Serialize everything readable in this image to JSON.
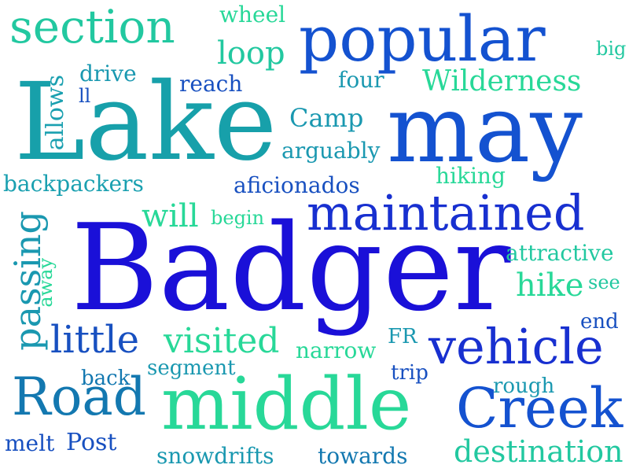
{
  "words": [
    {
      "text": "Badger",
      "color": "#1a10d8"
    },
    {
      "text": "Lake",
      "color": "#17a0aa"
    },
    {
      "text": "may",
      "color": "#1452d0"
    },
    {
      "text": "popular",
      "color": "#1452d0"
    },
    {
      "text": "middle",
      "color": "#28d898"
    },
    {
      "text": "maintained",
      "color": "#1830d0"
    },
    {
      "text": "Creek",
      "color": "#1452d0"
    },
    {
      "text": "vehicle",
      "color": "#1830d0"
    },
    {
      "text": "Road",
      "color": "#1378b0"
    },
    {
      "text": "section",
      "color": "#22c8a0"
    },
    {
      "text": "visited",
      "color": "#28d898"
    },
    {
      "text": "passing",
      "color": "#1a98b0"
    },
    {
      "text": "little",
      "color": "#1850c0"
    },
    {
      "text": "Wilderness",
      "color": "#28d898"
    },
    {
      "text": "destination",
      "color": "#22c8a0"
    },
    {
      "text": "allows",
      "color": "#1aa0b0"
    },
    {
      "text": "will",
      "color": "#28d898"
    },
    {
      "text": "hike",
      "color": "#28d898"
    },
    {
      "text": "loop",
      "color": "#22c8a0"
    },
    {
      "text": "backpackers",
      "color": "#1aa0b0"
    },
    {
      "text": "aficionados",
      "color": "#1850c0"
    },
    {
      "text": "arguably",
      "color": "#1a98b0"
    },
    {
      "text": "attractive",
      "color": "#22c8a0"
    },
    {
      "text": "Camp",
      "color": "#1a98b0"
    },
    {
      "text": "narrow",
      "color": "#28d898"
    },
    {
      "text": "snowdrifts",
      "color": "#1a98b0"
    },
    {
      "text": "towards",
      "color": "#1378b0"
    },
    {
      "text": "melt",
      "color": "#1850c0"
    },
    {
      "text": "Post",
      "color": "#1850c0"
    },
    {
      "text": "segment",
      "color": "#1a98b0"
    },
    {
      "text": "reach",
      "color": "#1850c0"
    },
    {
      "text": "drive",
      "color": "#1a98b0"
    },
    {
      "text": "four",
      "color": "#1a98b0"
    },
    {
      "text": "wheel",
      "color": "#28d898"
    },
    {
      "text": "hiking",
      "color": "#28d898"
    },
    {
      "text": "begin",
      "color": "#28d898"
    },
    {
      "text": "away",
      "color": "#28d898"
    },
    {
      "text": "back",
      "color": "#1378b0"
    },
    {
      "text": "rough",
      "color": "#1a98b0"
    },
    {
      "text": "trip",
      "color": "#1850c0"
    },
    {
      "text": "FR",
      "color": "#1a98b0"
    },
    {
      "text": "end",
      "color": "#1850c0"
    },
    {
      "text": "see",
      "color": "#22c8a0"
    },
    {
      "text": "big",
      "color": "#22c8a0"
    },
    {
      "text": "ll",
      "color": "#1850c0"
    }
  ]
}
